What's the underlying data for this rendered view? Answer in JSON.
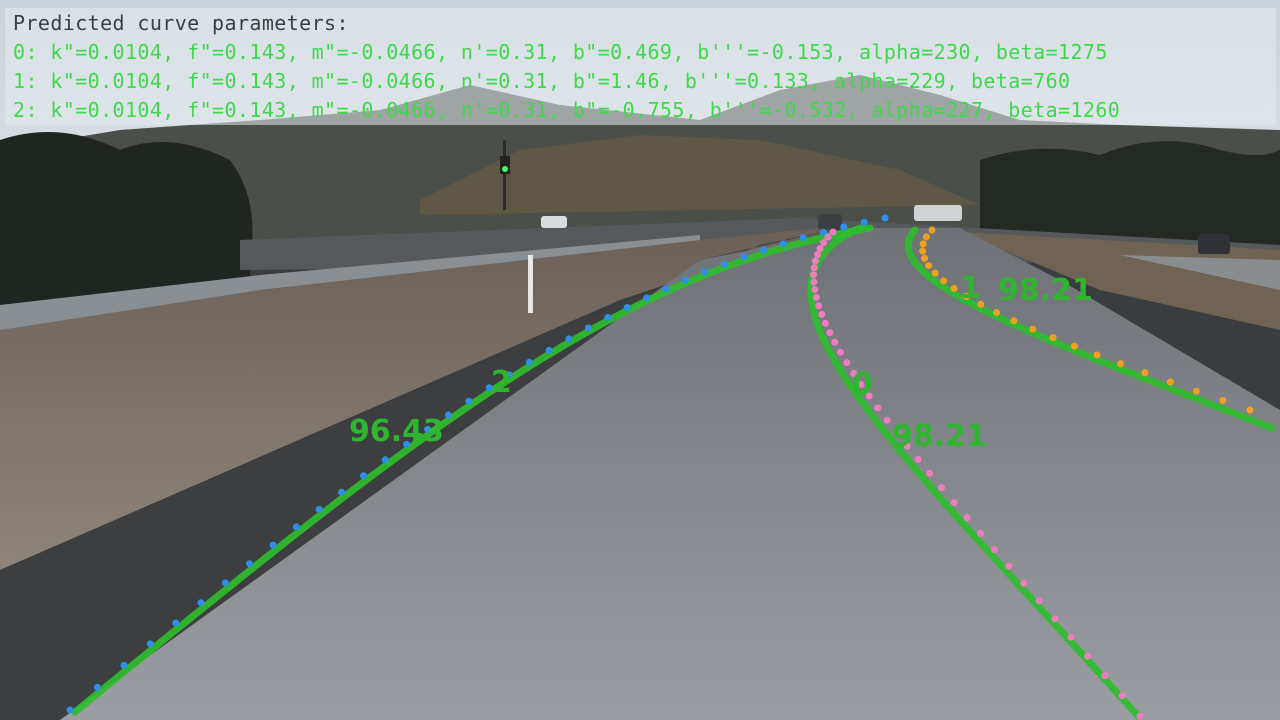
{
  "panel": {
    "title": "Predicted curve parameters:",
    "lines": [
      "0: k\"=0.0104, f\"=0.143, m\"=-0.0466, n'=0.31, b\"=0.469, b'''=-0.153, alpha=230, beta=1275",
      "1: k\"=0.0104, f\"=0.143, m\"=-0.0466, n'=0.31, b\"=1.46, b'''=0.133, alpha=229, beta=760",
      "2: k\"=0.0104, f\"=0.143, m\"=-0.0466, n'=0.31, b\"=-0.755, b'''=-0.532, alpha=227, beta=1260"
    ]
  },
  "lanes": [
    {
      "id": "0",
      "score": "98.21"
    },
    {
      "id": "1",
      "score": "98.21"
    },
    {
      "id": "2",
      "score": "96.43"
    }
  ],
  "colors": {
    "prediction": "#2ebd2e",
    "gt_left": "#2f8fe8",
    "gt_center": "#f07cc0",
    "gt_right": "#f0a020",
    "panel_text": "#3ed94a"
  }
}
